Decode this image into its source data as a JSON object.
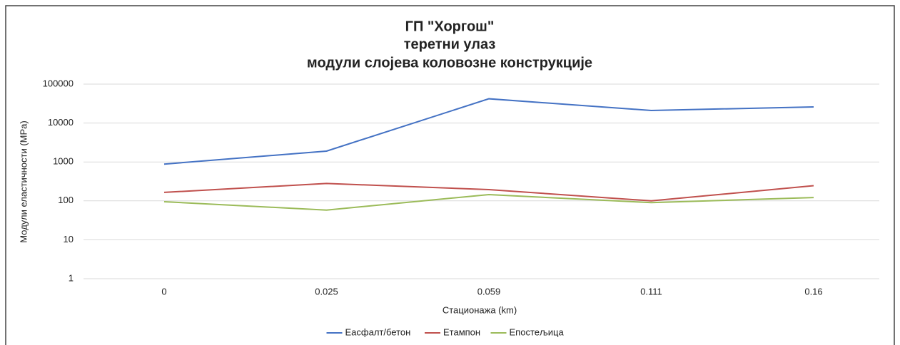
{
  "chart_data": {
    "type": "line",
    "title": [
      "ГП \"Хоргош\"",
      "теретни улаз",
      "модули слојева коловозне конструкције"
    ],
    "x_label": "Стационажа (km)",
    "y_label": "Модули еластичности (MPa)",
    "categories": [
      "0",
      "0.025",
      "0.059",
      "0.111",
      "0.16"
    ],
    "series": [
      {
        "name": "Еасфалт/бетон",
        "color": "#4472c4",
        "values": [
          880,
          1900,
          42000,
          21000,
          26000
        ]
      },
      {
        "name": "Етампон",
        "color": "#c0504d",
        "values": [
          165,
          280,
          195,
          100,
          245
        ]
      },
      {
        "name": "Епостељица",
        "color": "#9bbb59",
        "values": [
          95,
          58,
          145,
          90,
          122
        ]
      }
    ],
    "log_y": true,
    "ylim": [
      1,
      100000
    ],
    "yticks": [
      1,
      10,
      100,
      1000,
      10000,
      100000
    ],
    "grid": true,
    "legend": "bottom"
  }
}
